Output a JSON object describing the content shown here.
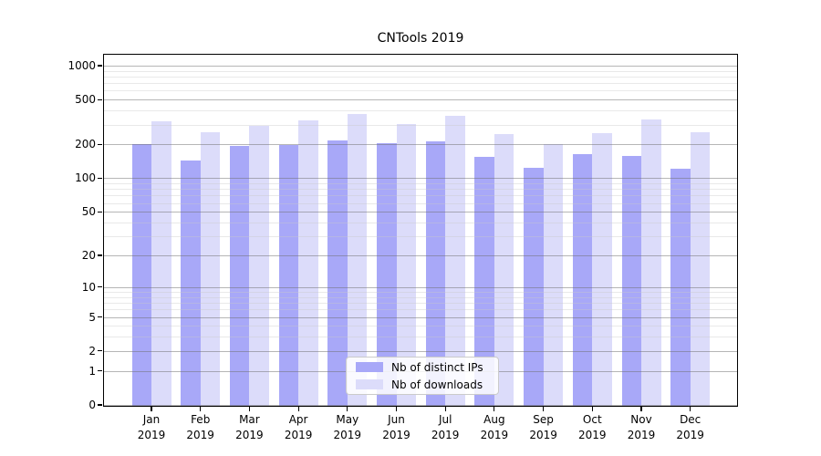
{
  "chart_data": {
    "type": "bar",
    "title": "CNTools 2019",
    "x_tick_labels": [
      [
        "Jan",
        "2019"
      ],
      [
        "Feb",
        "2019"
      ],
      [
        "Mar",
        "2019"
      ],
      [
        "Apr",
        "2019"
      ],
      [
        "May",
        "2019"
      ],
      [
        "Jun",
        "2019"
      ],
      [
        "Jul",
        "2019"
      ],
      [
        "Aug",
        "2019"
      ],
      [
        "Sep",
        "2019"
      ],
      [
        "Oct",
        "2019"
      ],
      [
        "Nov",
        "2019"
      ],
      [
        "Dec",
        "2019"
      ]
    ],
    "series": [
      {
        "name": "Nb of distinct IPs",
        "color": "#a8a8f8",
        "values": [
          200,
          145,
          195,
          197,
          217,
          204,
          213,
          154,
          124,
          165,
          157,
          122
        ]
      },
      {
        "name": "Nb of downloads",
        "color": "#dcdcfa",
        "values": [
          320,
          255,
          290,
          328,
          374,
          304,
          361,
          249,
          201,
          252,
          333,
          258
        ]
      }
    ],
    "y_ticks": [
      0,
      1,
      2,
      5,
      10,
      20,
      50,
      100,
      200,
      500,
      1000
    ],
    "y_minor_ticks": [
      3,
      4,
      6,
      7,
      8,
      9,
      30,
      40,
      60,
      70,
      80,
      90,
      300,
      400,
      600,
      700,
      800,
      900
    ],
    "y_scale": "log10(value+1)",
    "ylim": [
      0,
      1270
    ],
    "grid": true,
    "legend_position": "lower center",
    "colors": {
      "major_grid": "#b5b5b5",
      "minor_grid": "#e9e9e9",
      "axis": "#000000"
    }
  }
}
